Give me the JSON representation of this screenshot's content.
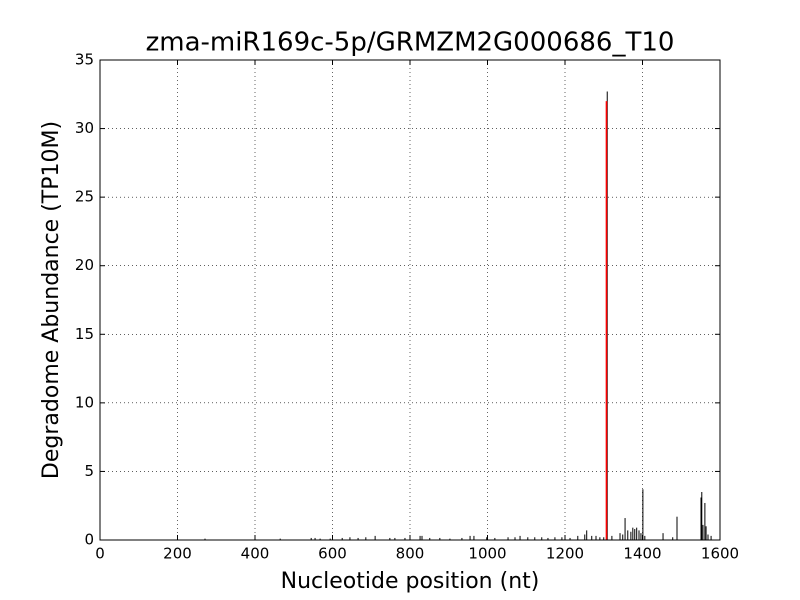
{
  "chart_data": {
    "type": "stem",
    "title": "zma-miR169c-5p/GRMZM2G000686_T10",
    "xlabel": "Nucleotide position (nt)",
    "ylabel": "Degradome Abundance (TP10M)",
    "xlim": [
      0,
      1600
    ],
    "xticks": [
      0,
      200,
      400,
      600,
      800,
      1000,
      1200,
      1400,
      1600
    ],
    "ylim": [
      0,
      35
    ],
    "yticks": [
      0,
      5,
      10,
      15,
      20,
      25,
      30,
      35
    ],
    "grid": true,
    "series": [
      {
        "color": "#000000",
        "x": [
          271,
          465,
          545,
          555,
          568,
          594,
          625,
          645,
          666,
          686,
          710,
          748,
          761,
          787,
          800,
          826,
          831,
          851,
          877,
          903,
          934,
          955,
          965,
          998,
          1019,
          1053,
          1071,
          1084,
          1104,
          1122,
          1140,
          1156,
          1174,
          1192,
          1213,
          1233,
          1251,
          1256,
          1269,
          1280,
          1290,
          1300,
          1309,
          1321,
          1342,
          1349,
          1355,
          1362,
          1370,
          1375,
          1380,
          1385,
          1391,
          1396,
          1401,
          1406,
          1453,
          1478,
          1489,
          1551,
          1553,
          1556,
          1561,
          1564,
          1569,
          1577
        ],
        "values": [
          0.1,
          0.1,
          0.15,
          0.15,
          0.1,
          0.1,
          0.15,
          0.2,
          0.15,
          0.2,
          0.3,
          0.15,
          0.15,
          0.15,
          0.2,
          0.3,
          0.3,
          0.15,
          0.15,
          0.1,
          0.15,
          0.3,
          0.3,
          0.2,
          0.15,
          0.2,
          0.2,
          0.3,
          0.2,
          0.2,
          0.2,
          0.15,
          0.2,
          0.2,
          0.15,
          0.3,
          0.4,
          0.7,
          0.3,
          0.3,
          0.2,
          0.2,
          32.7,
          0.3,
          0.5,
          0.4,
          1.6,
          0.7,
          0.6,
          0.9,
          0.8,
          0.9,
          0.7,
          0.5,
          3.7,
          0.3,
          0.5,
          0.2,
          1.7,
          3.1,
          3.5,
          1.1,
          2.7,
          1.0,
          0.4,
          0.3
        ]
      },
      {
        "color": "#ff0000",
        "x": [
          1307
        ],
        "values": [
          32
        ]
      }
    ]
  }
}
